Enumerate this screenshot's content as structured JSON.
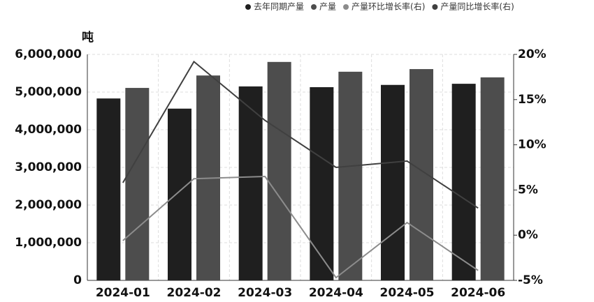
{
  "chart_data": {
    "type": "bar-line",
    "y_label": "吨",
    "categories": [
      "2024-01",
      "2024-02",
      "2024-03",
      "2024-04",
      "2024-05",
      "2024-06"
    ],
    "series": [
      {
        "name": "去年同期产量",
        "color": "#1f1f1f",
        "type": "bar",
        "values": [
          4830000,
          4560000,
          5150000,
          5130000,
          5190000,
          5220000
        ]
      },
      {
        "name": "产量",
        "color": "#4d4d4d",
        "type": "bar",
        "values": [
          5110000,
          5440000,
          5800000,
          5540000,
          5610000,
          5390000
        ]
      },
      {
        "name": "产量环比增长率(右)",
        "color": "#8c8c8c",
        "type": "line",
        "axis": "y2",
        "values": [
          -0.6,
          6.25,
          6.5,
          -4.7,
          1.4,
          -3.9
        ]
      },
      {
        "name": "产量同比增长率(右)",
        "color": "#404040",
        "type": "line",
        "axis": "y2",
        "values": [
          5.8,
          19.2,
          12.7,
          7.5,
          8.2,
          3.0
        ]
      }
    ],
    "ylim": [
      0,
      6000000
    ],
    "yticks": [
      0,
      {
        "value": 1000000,
        "label": "1,000,000"
      },
      {
        "value": 2000000,
        "label": "2,000,000"
      },
      {
        "value": 3000000,
        "label": "3,000,000"
      },
      {
        "value": 4000000,
        "label": "4,000,000"
      },
      {
        "value": 5000000,
        "label": "5,000,000"
      },
      {
        "value": 6000000,
        "label": "6,000,000"
      }
    ],
    "y2lim": [
      -5,
      20
    ],
    "y2ticks": [
      {
        "value": -5,
        "label": "-5%"
      },
      {
        "value": 0,
        "label": "0%"
      },
      {
        "value": 5,
        "label": "5%"
      },
      {
        "value": 10,
        "label": "10%"
      },
      {
        "value": 15,
        "label": "15%"
      },
      {
        "value": 20,
        "label": "20%"
      }
    ],
    "grid": true
  }
}
